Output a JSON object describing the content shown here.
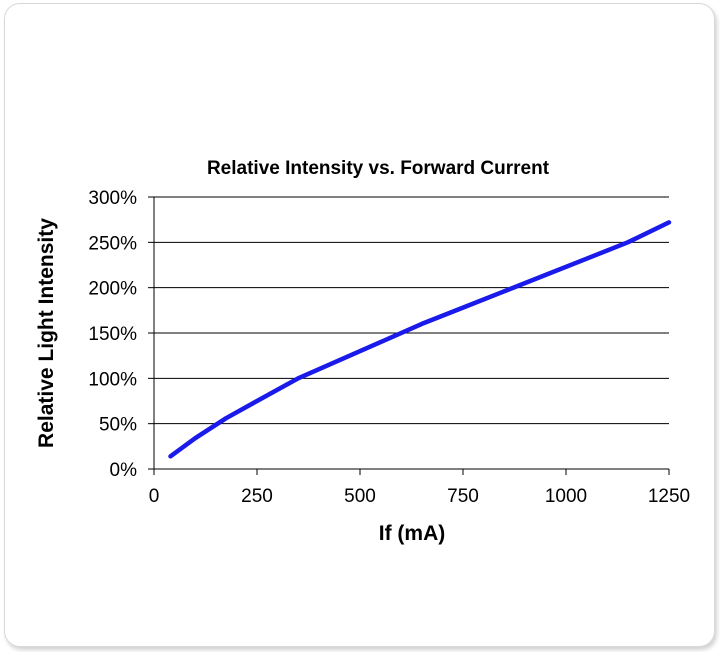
{
  "chart_data": {
    "type": "line",
    "title": "Relative Intensity vs. Forward Current",
    "xlabel": "If (mA)",
    "ylabel": "Relative Light Intensity",
    "xlim": [
      0,
      1250
    ],
    "ylim": [
      0,
      300
    ],
    "x_ticks": [
      0,
      250,
      500,
      750,
      1000,
      1250
    ],
    "y_ticks": [
      0,
      50,
      100,
      150,
      200,
      250,
      300
    ],
    "x_tick_labels": [
      "0",
      "250",
      "500",
      "750",
      "1000",
      "1250"
    ],
    "y_tick_labels": [
      "0%",
      "50%",
      "100%",
      "150%",
      "200%",
      "250%",
      "300%"
    ],
    "grid": "horizontal",
    "legend": "none",
    "series": [
      {
        "color": "#1a1aeb",
        "x": [
          40,
          100,
          175,
          250,
          350,
          450,
          550,
          650,
          750,
          850,
          950,
          1050,
          1150,
          1250
        ],
        "y": [
          14,
          34,
          56,
          75,
          100,
          120,
          140,
          160,
          178,
          196,
          214,
          232,
          250,
          272
        ]
      }
    ]
  }
}
